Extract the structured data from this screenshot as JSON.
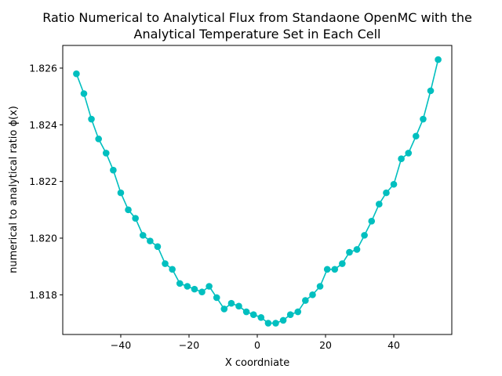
{
  "chart_data": {
    "type": "line",
    "title_lines": [
      "Ratio Numerical to Analytical Flux from Standaone OpenMC with the",
      "Analytical Temperature Set in Each Cell"
    ],
    "xlabel": "X coordniate",
    "ylabel": "numerical to analytical ratio ϕ(x)",
    "xlim": [
      -57,
      57
    ],
    "ylim": [
      1.8166,
      1.8268
    ],
    "xticks": [
      -40,
      -20,
      0,
      20,
      40
    ],
    "yticks": [
      1.818,
      1.82,
      1.822,
      1.824,
      1.826
    ],
    "xtick_labels": [
      "−40",
      "−20",
      "0",
      "20",
      "40"
    ],
    "ytick_labels": [
      "1.818",
      "1.820",
      "1.822",
      "1.824",
      "1.826"
    ],
    "grid": false,
    "series": [
      {
        "color": "#00bfbf",
        "marker": "circle",
        "x": [
          -53.0,
          -50.8,
          -48.6,
          -46.5,
          -44.3,
          -42.2,
          -40.0,
          -37.8,
          -35.7,
          -33.5,
          -31.4,
          -29.2,
          -27.0,
          -24.9,
          -22.7,
          -20.5,
          -18.4,
          -16.2,
          -14.1,
          -11.9,
          -9.7,
          -7.6,
          -5.4,
          -3.2,
          -1.1,
          1.1,
          3.2,
          5.4,
          7.6,
          9.7,
          11.9,
          14.1,
          16.2,
          18.4,
          20.5,
          22.7,
          24.9,
          27.0,
          29.2,
          31.4,
          33.5,
          35.7,
          37.8,
          40.0,
          42.2,
          44.3,
          46.5,
          48.6,
          50.8,
          53.0
        ],
        "y": [
          1.8258,
          1.8251,
          1.8242,
          1.8235,
          1.823,
          1.8224,
          1.8216,
          1.821,
          1.8207,
          1.8201,
          1.8199,
          1.8197,
          1.8191,
          1.8189,
          1.8184,
          1.8183,
          1.8182,
          1.8181,
          1.8183,
          1.8179,
          1.8175,
          1.8177,
          1.8176,
          1.8174,
          1.8173,
          1.8172,
          1.817,
          1.817,
          1.8171,
          1.8173,
          1.8174,
          1.8178,
          1.818,
          1.8183,
          1.8189,
          1.8189,
          1.8191,
          1.8195,
          1.8196,
          1.8201,
          1.8206,
          1.8212,
          1.8216,
          1.8219,
          1.8228,
          1.823,
          1.8236,
          1.8242,
          1.8252,
          1.8263
        ]
      }
    ]
  }
}
